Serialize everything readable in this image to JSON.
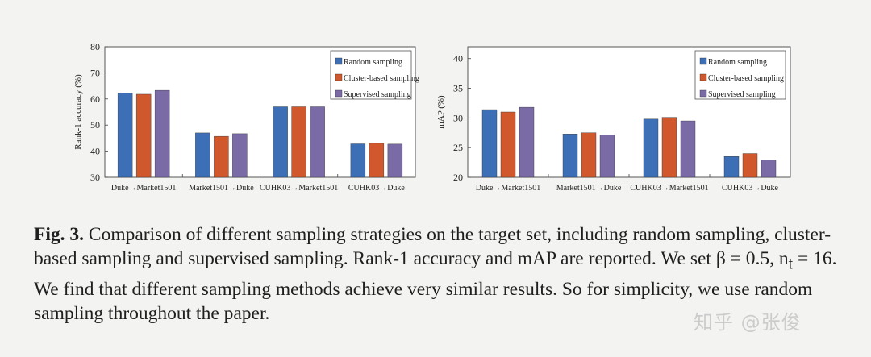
{
  "figure": {
    "caption_label": "Fig. 3.",
    "caption_text": "Comparison of different sampling strategies on the target set, including random sampling, cluster-based sampling and supervised sampling. Rank-1 accuracy and mAP are reported. We set β = 0.5, n",
    "caption_subscript": "t",
    "caption_text_end": " = 16. We find that different sampling methods achieve very similar results. So for simplicity, we use random sampling throughout the paper.",
    "watermark": "知乎 @张俊"
  },
  "colors": {
    "random": "#3d6fb6",
    "cluster": "#d0582c",
    "supervised": "#7a6aa6"
  },
  "chart_data": [
    {
      "type": "bar",
      "categories": [
        "Duke→Market1501",
        "Market1501→Duke",
        "CUHK03→Market1501",
        "CUHK03→Duke"
      ],
      "series": [
        {
          "name": "Random sampling",
          "values": [
            62.3,
            47.0,
            57.0,
            42.8
          ]
        },
        {
          "name": "Cluster-based sampling",
          "values": [
            61.8,
            45.7,
            57.0,
            43.0
          ]
        },
        {
          "name": "Supervised sampling",
          "values": [
            63.3,
            46.7,
            57.0,
            42.7
          ]
        }
      ],
      "ylabel": "Rank-1 accuracy (%)",
      "ylim": [
        30,
        80
      ],
      "yticks": [
        30,
        40,
        50,
        60,
        70,
        80
      ],
      "legend_position": "top-right",
      "grid": false
    },
    {
      "type": "bar",
      "categories": [
        "Duke→Market1501",
        "Market1501→Duke",
        "CUHK03→Market1501",
        "CUHK03→Duke"
      ],
      "series": [
        {
          "name": "Random sampling",
          "values": [
            31.4,
            27.3,
            29.8,
            23.5
          ]
        },
        {
          "name": "Cluster-based sampling",
          "values": [
            31.0,
            27.5,
            30.1,
            24.0
          ]
        },
        {
          "name": "Supervised sampling",
          "values": [
            31.8,
            27.1,
            29.5,
            22.9
          ]
        }
      ],
      "ylabel": "mAP (%)",
      "ylim": [
        20,
        42
      ],
      "yticks": [
        20,
        25,
        30,
        35,
        40
      ],
      "legend_position": "top-right",
      "grid": false
    }
  ]
}
